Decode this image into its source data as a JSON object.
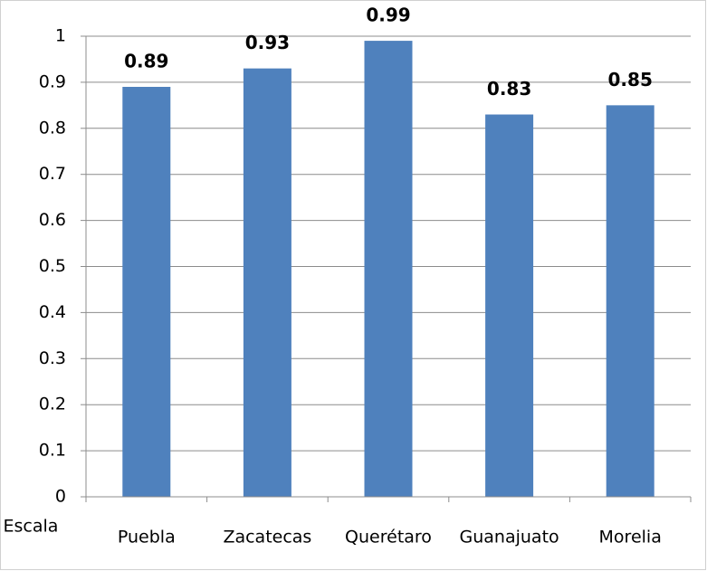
{
  "chart_data": {
    "type": "bar",
    "categories": [
      "Puebla",
      "Zacatecas",
      "Querétaro",
      "Guanajuato",
      "Morelia"
    ],
    "values": [
      0.89,
      0.93,
      0.99,
      0.83,
      0.85
    ],
    "color": "#4f81bd",
    "ylabel": "Escala",
    "ylim": [
      0,
      1
    ],
    "yticks": [
      0,
      0.1,
      0.2,
      0.3,
      0.4,
      0.5,
      0.6,
      0.7,
      0.8,
      0.9,
      1
    ],
    "grid": true,
    "data_labels": true
  }
}
